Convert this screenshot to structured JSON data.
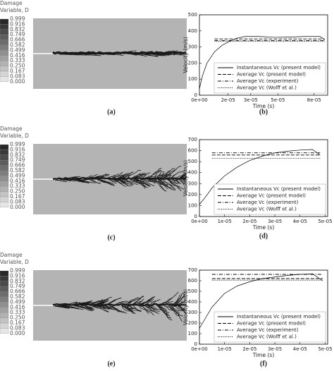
{
  "contours": [
    {
      "title_lines": [
        "Damage",
        "Variable, D"
      ],
      "colorbar_labels": [
        "0.999",
        "0.916",
        "0.832",
        "0.749",
        "0.666",
        "0.582",
        "0.499",
        "0.416",
        "0.333",
        "0.250",
        "0.167",
        "0.083",
        "0.000"
      ],
      "panel_label": "(a)"
    },
    {
      "title_lines": [
        "Damage",
        "Variable, D"
      ],
      "colorbar_labels": [
        "0.999",
        "0.916",
        "0.832",
        "0.749",
        "0.666",
        "0.582",
        "0.499",
        "0.416",
        "0.333",
        "0.250",
        "0.167",
        "0.083",
        "0.000"
      ],
      "panel_label": "(c)"
    },
    {
      "title_lines": [
        "Damage",
        "Variable, D"
      ],
      "colorbar_labels": [
        "0.999",
        "0.916",
        "0.832",
        "0.749",
        "0.666",
        "0.582",
        "0.499",
        "0.416",
        "0.333",
        "0.250",
        "0.167",
        "0.083",
        "0.000"
      ],
      "panel_label": "(e)"
    }
  ],
  "chart_data": [
    {
      "type": "line",
      "panel_label": "(b)",
      "xlabel": "Time (s)",
      "ylabel": "Velocity (m/s)",
      "legend": "lower right",
      "grid": false,
      "xlim": [
        0,
        8.5e-05
      ],
      "ylim": [
        0,
        500
      ],
      "xticks": [
        {
          "value": 0,
          "label": "0e+00"
        },
        {
          "value": 1.9e-05,
          "label": "2e-05"
        },
        {
          "value": 3.4e-05,
          "label": "3e-05"
        },
        {
          "value": 5.2e-05,
          "label": "5e-05"
        },
        {
          "value": 7.6e-05,
          "label": "8e-05"
        }
      ],
      "yticks": [
        0,
        100,
        200,
        300,
        400,
        500
      ],
      "x": [
        0,
        2e-06,
        5e-06,
        1e-05,
        1.5e-05,
        2e-05,
        2.5e-05,
        3e-05,
        4e-05,
        5e-05,
        6e-05,
        7e-05,
        8e-05,
        8.3e-05
      ],
      "series": [
        {
          "name": "Instantaneous Vc (present model)",
          "color": "#000000",
          "linestyle": "solid",
          "values": [
            40,
            120,
            200,
            270,
            310,
            335,
            355,
            365,
            365,
            360,
            362,
            365,
            365,
            345
          ]
        },
        {
          "name": "Average Vc (present model)",
          "color": "#000000",
          "linestyle": "dashed",
          "values": [
            null,
            null,
            null,
            350,
            350,
            350,
            350,
            350,
            350,
            350,
            350,
            350,
            350,
            350
          ]
        },
        {
          "name": "Average Vc (experiment)",
          "color": "#000000",
          "linestyle": "dashdot",
          "values": [
            null,
            null,
            null,
            340,
            340,
            340,
            340,
            340,
            340,
            340,
            340,
            340,
            340,
            340
          ]
        },
        {
          "name": "Average Vc (Wolff et al.)",
          "color": "#000000",
          "linestyle": "dotted",
          "values": [
            null,
            null,
            null,
            335,
            335,
            335,
            335,
            335,
            335,
            335,
            335,
            335,
            335,
            335
          ]
        }
      ]
    },
    {
      "type": "line",
      "panel_label": "(d)",
      "xlabel": "Time (s)",
      "ylabel": "Velocity (m/s)",
      "legend": "lower right",
      "grid": false,
      "xlim": [
        0,
        5.1e-05
      ],
      "ylim": [
        0,
        700
      ],
      "xticks": [
        {
          "value": 0,
          "label": "0e+00"
        },
        {
          "value": 1e-05,
          "label": "1e-05"
        },
        {
          "value": 2e-05,
          "label": "2e-05"
        },
        {
          "value": 3e-05,
          "label": "3e-05"
        },
        {
          "value": 4e-05,
          "label": "4e-05"
        },
        {
          "value": 5e-05,
          "label": "5e-05"
        }
      ],
      "yticks": [
        0,
        100,
        200,
        300,
        400,
        500,
        600,
        700
      ],
      "x": [
        0,
        2.5e-06,
        5e-06,
        1e-05,
        1.5e-05,
        2e-05,
        2.5e-05,
        3e-05,
        3.5e-05,
        4e-05,
        4.5e-05,
        4.8e-05
      ],
      "series": [
        {
          "name": "Instantaneous Vc (present model)",
          "color": "#000000",
          "linestyle": "solid",
          "values": [
            110,
            180,
            260,
            370,
            450,
            510,
            550,
            580,
            595,
            605,
            610,
            560
          ]
        },
        {
          "name": "Average Vc (present model)",
          "color": "#000000",
          "linestyle": "dashed",
          "values": [
            null,
            null,
            560,
            560,
            560,
            560,
            560,
            560,
            560,
            560,
            560,
            560
          ]
        },
        {
          "name": "Average Vc (experiment)",
          "color": "#000000",
          "linestyle": "dashdot",
          "values": [
            null,
            null,
            580,
            580,
            580,
            580,
            580,
            580,
            580,
            580,
            580,
            580
          ]
        },
        {
          "name": "Average Vc (Wolff et al.)",
          "color": "#000000",
          "linestyle": "dotted",
          "values": [
            null,
            null,
            530,
            530,
            530,
            530,
            530,
            530,
            530,
            530,
            530,
            530
          ]
        }
      ]
    },
    {
      "type": "line",
      "panel_label": "(f)",
      "xlabel": "Time (s)",
      "ylabel": "Velocity (m/s)",
      "legend": "lower right",
      "grid": false,
      "xlim": [
        0,
        5.1e-05
      ],
      "ylim": [
        0,
        700
      ],
      "xticks": [
        {
          "value": 0,
          "label": "0e+00"
        },
        {
          "value": 1e-05,
          "label": "1e-05"
        },
        {
          "value": 2e-05,
          "label": "2e-05"
        },
        {
          "value": 3e-05,
          "label": "3e-05"
        },
        {
          "value": 4e-05,
          "label": "4e-05"
        },
        {
          "value": 5e-05,
          "label": "5e-05"
        }
      ],
      "yticks": [
        0,
        100,
        200,
        300,
        400,
        500,
        600,
        700
      ],
      "x": [
        0,
        2.5e-06,
        5e-06,
        1e-05,
        1.5e-05,
        2e-05,
        2.5e-05,
        3e-05,
        3.5e-05,
        4e-05,
        4.5e-05,
        4.9e-05
      ],
      "series": [
        {
          "name": "Instantaneous Vc (present model)",
          "color": "#000000",
          "linestyle": "solid",
          "values": [
            150,
            250,
            350,
            480,
            550,
            590,
            620,
            635,
            650,
            660,
            665,
            600
          ]
        },
        {
          "name": "Average Vc (present model)",
          "color": "#000000",
          "linestyle": "dashed",
          "values": [
            null,
            null,
            620,
            620,
            620,
            620,
            620,
            620,
            620,
            620,
            620,
            620
          ]
        },
        {
          "name": "Average Vc (experiment)",
          "color": "#000000",
          "linestyle": "dashdot",
          "values": [
            null,
            null,
            660,
            660,
            660,
            660,
            660,
            660,
            660,
            660,
            660,
            660
          ]
        },
        {
          "name": "Average Vc (Wolff et al.)",
          "color": "#000000",
          "linestyle": "dotted",
          "values": [
            null,
            null,
            605,
            605,
            605,
            605,
            605,
            605,
            605,
            605,
            605,
            605
          ]
        }
      ]
    }
  ]
}
